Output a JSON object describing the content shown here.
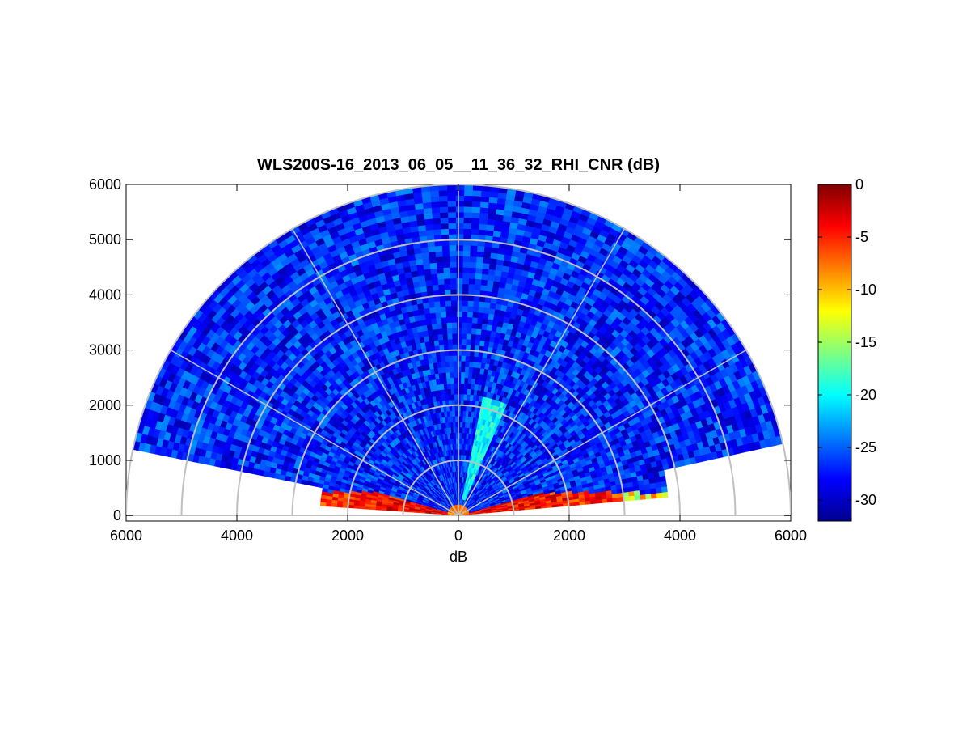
{
  "chart_data": {
    "type": "heatmap",
    "subtype": "polar-rhi-fan",
    "title": "WLS200S-16_2013_06_05__11_36_32_RHI_CNR (dB)",
    "xlabel": "dB",
    "ylabel": "",
    "x_ticks": [
      "6000",
      "4000",
      "2000",
      "0",
      "2000",
      "4000",
      "6000"
    ],
    "x_tick_values": [
      -6000,
      -4000,
      -2000,
      0,
      2000,
      4000,
      6000
    ],
    "y_ticks": [
      "0",
      "1000",
      "2000",
      "3000",
      "4000",
      "5000",
      "6000"
    ],
    "y_tick_values": [
      0,
      1000,
      2000,
      3000,
      4000,
      5000,
      6000
    ],
    "xlim": [
      -6000,
      6000
    ],
    "ylim": [
      -100,
      6000
    ],
    "max_range": 6000,
    "range_rings": [
      1000,
      2000,
      3000,
      4000,
      5000,
      6000
    ],
    "spokes_deg": [
      0,
      30,
      60,
      90,
      120,
      150,
      180
    ],
    "scan_elevation_deg": [
      5,
      175
    ],
    "colorbar": {
      "ticks": [
        "0",
        "-5",
        "-10",
        "-15",
        "-20",
        "-25",
        "-30"
      ],
      "tick_values": [
        0,
        -5,
        -10,
        -15,
        -20,
        -25,
        -30
      ],
      "clim": [
        -32,
        0
      ],
      "colormap": "jet"
    },
    "field_description": {
      "background_level_db": -27,
      "near_ground_level_db": -3,
      "near_ground_range_left": 2500,
      "near_ground_range_right": 3800,
      "plume_angle_deg": 72,
      "plume_level_db": -20
    }
  }
}
